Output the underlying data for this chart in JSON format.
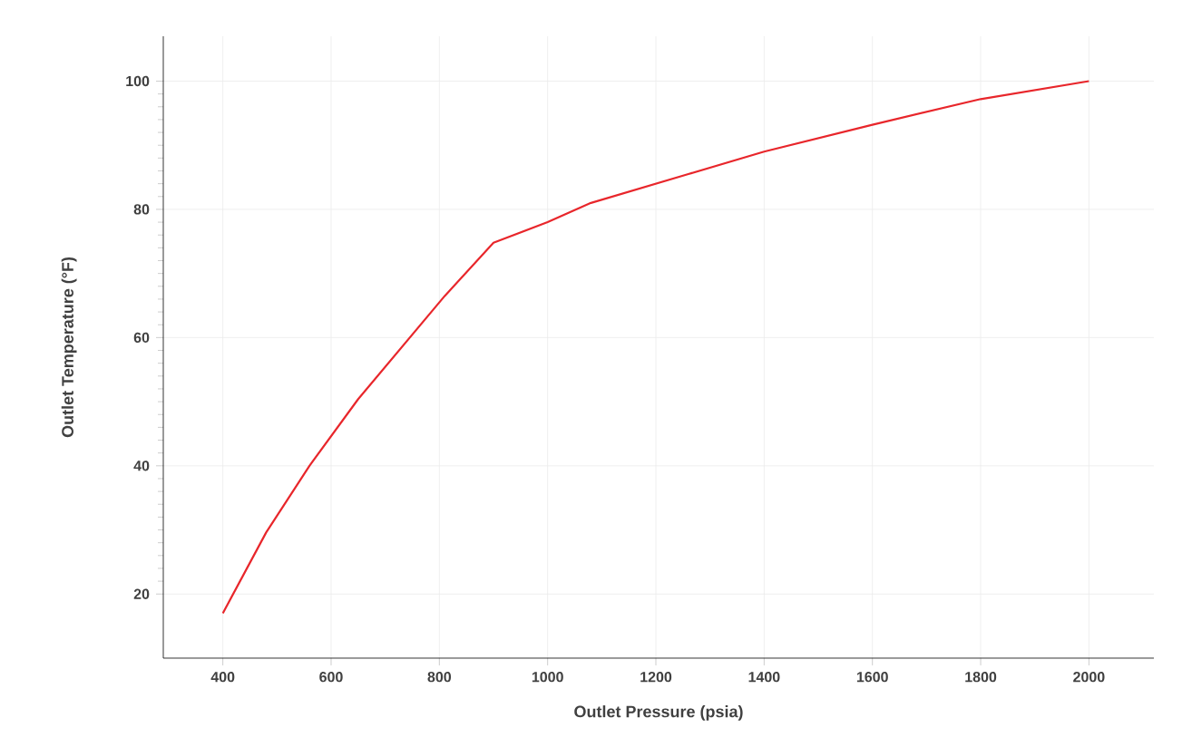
{
  "chart_data": {
    "type": "line",
    "xlabel": "Outlet Pressure (psia)",
    "ylabel": "Outlet Temperature (°F)",
    "x": [
      400,
      480,
      560,
      650,
      810,
      900,
      1000,
      1080,
      1260,
      1400,
      1600,
      1800,
      2000
    ],
    "series": [
      {
        "color": "#e8262b",
        "values": [
          17,
          29.6,
          40,
          50.4,
          66.5,
          74.8,
          78,
          81,
          85.5,
          89,
          93.2,
          97.2,
          100
        ]
      }
    ],
    "xlim": [
      290,
      2120
    ],
    "ylim": [
      10,
      107
    ],
    "xticks": [
      400,
      600,
      800,
      1000,
      1200,
      1400,
      1600,
      1800,
      2000
    ],
    "yticks": [
      20,
      40,
      60,
      80,
      100
    ],
    "grid": true,
    "marker": "none",
    "line_style": "solid"
  }
}
